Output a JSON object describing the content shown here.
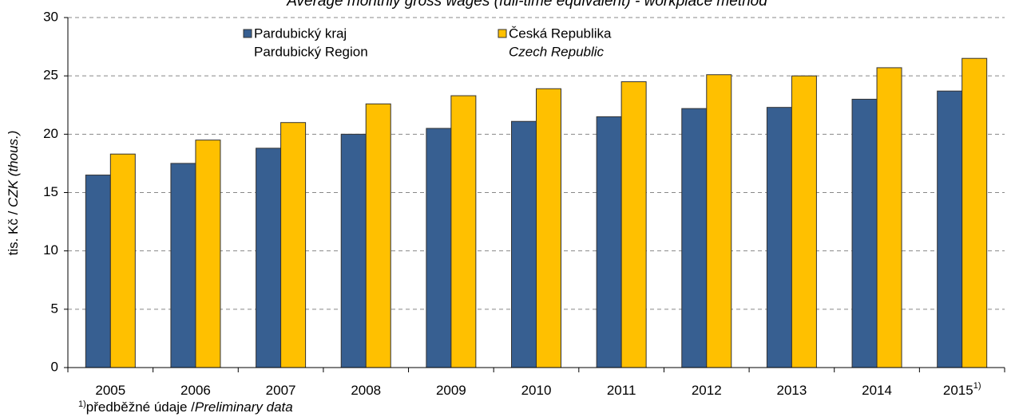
{
  "chart_data": {
    "type": "bar",
    "title": "Average monthly gross wages (full-time equivalent) - workplace method",
    "y_label": "tis. Kč / ",
    "y_label_en": "CZK (thous.)",
    "categories": [
      "2005",
      "2006",
      "2007",
      "2008",
      "2009",
      "2010",
      "2011",
      "2012",
      "2013",
      "2014",
      "2015"
    ],
    "series": [
      {
        "name": "Pardubický kraj",
        "name_en": "Pardubický Region",
        "color": "#375f91",
        "values": [
          16.5,
          17.5,
          18.8,
          20.0,
          20.5,
          21.1,
          21.5,
          22.2,
          22.3,
          23.0,
          23.7
        ]
      },
      {
        "name": "Česká Republika",
        "name_en": "Czech Republic",
        "color": "#ffc000",
        "values": [
          18.3,
          19.5,
          21.0,
          22.6,
          23.3,
          23.9,
          24.5,
          25.1,
          25.0,
          25.7,
          26.5
        ]
      }
    ],
    "ylim": [
      0,
      30
    ],
    "yticks": [
      0,
      5,
      10,
      15,
      20,
      25,
      30
    ],
    "grid": true,
    "footnote_marker": "1)",
    "footnote": "předběžné údaje /",
    "footnote_en": "Preliminary data"
  }
}
